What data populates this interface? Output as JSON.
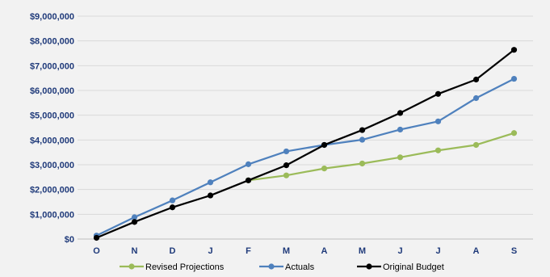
{
  "chart_data": {
    "type": "line",
    "title": "",
    "xlabel": "",
    "ylabel": "",
    "x": [
      "O",
      "N",
      "D",
      "J",
      "F",
      "M",
      "A",
      "M",
      "J",
      "J",
      "A",
      "S"
    ],
    "ylim": [
      0,
      9000000
    ],
    "yticks": [
      0,
      1000000,
      2000000,
      3000000,
      4000000,
      5000000,
      6000000,
      7000000,
      8000000,
      9000000
    ],
    "ytick_labels": [
      "$0",
      "$1,000,000",
      "$2,000,000",
      "$3,000,000",
      "$4,000,000",
      "$5,000,000",
      "$6,000,000",
      "$7,000,000",
      "$8,000,000",
      "$9,000,000"
    ],
    "grid": true,
    "legend_position": "bottom",
    "series": [
      {
        "name": "Revised Projections",
        "color": "#9bbb59",
        "values": [
          null,
          null,
          null,
          null,
          2370000,
          2570000,
          2850000,
          3050000,
          3300000,
          3580000,
          3800000,
          4280000
        ]
      },
      {
        "name": "Actuals",
        "color": "#4f81bd",
        "values": [
          140000,
          880000,
          1560000,
          2290000,
          3020000,
          3540000,
          3800000,
          4010000,
          4420000,
          4750000,
          5690000,
          6470000
        ]
      },
      {
        "name": "Original Budget",
        "color": "#000000",
        "values": [
          50000,
          690000,
          1280000,
          1760000,
          2370000,
          2980000,
          3800000,
          4400000,
          5090000,
          5860000,
          6440000,
          7640000
        ]
      }
    ]
  }
}
